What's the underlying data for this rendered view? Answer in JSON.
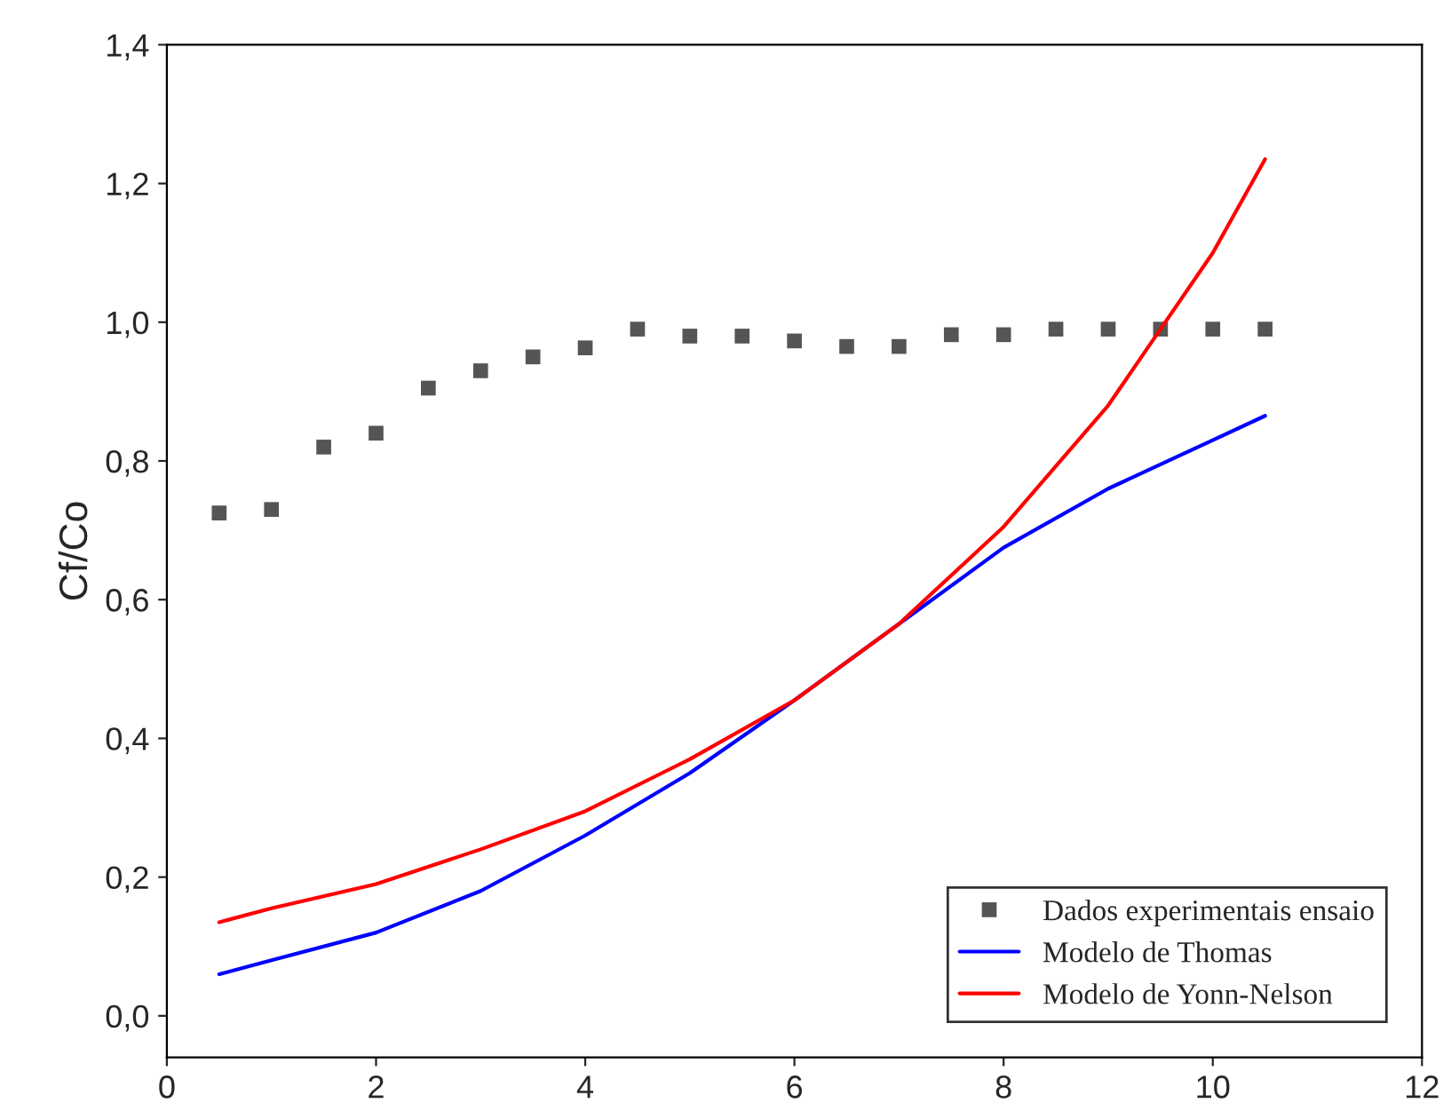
{
  "chart_data": {
    "type": "line",
    "ylabel": "Cf/Co",
    "xlim": [
      0,
      12
    ],
    "xticks": [
      0,
      2,
      4,
      6,
      8,
      10,
      12
    ],
    "ylim": [
      -0.06,
      1.4
    ],
    "yticks": [
      {
        "value": 0.0,
        "label": "0,0"
      },
      {
        "value": 0.2,
        "label": "0,2"
      },
      {
        "value": 0.4,
        "label": "0,4"
      },
      {
        "value": 0.6,
        "label": "0,6"
      },
      {
        "value": 0.8,
        "label": "0,8"
      },
      {
        "value": 1.0,
        "label": "1,0"
      },
      {
        "value": 1.2,
        "label": "1,2"
      },
      {
        "value": 1.4,
        "label": "1,4"
      }
    ],
    "grid": false,
    "legend": "bottom right",
    "series": [
      {
        "name": "Dados experimentais ensaio",
        "type": "scatter",
        "marker": "square",
        "color": "#555555",
        "x": [
          0.5,
          1,
          1.5,
          2,
          2.5,
          3,
          3.5,
          4,
          4.5,
          5,
          5.5,
          6,
          6.5,
          7,
          7.5,
          8,
          8.5,
          9,
          9.5,
          10,
          10.5
        ],
        "values": [
          0.725,
          0.73,
          0.82,
          0.84,
          0.905,
          0.93,
          0.95,
          0.963,
          0.99,
          0.98,
          0.98,
          0.973,
          0.965,
          0.965,
          0.982,
          0.982,
          0.99,
          0.99,
          0.99,
          0.99,
          0.99
        ]
      },
      {
        "name": "Modelo de Thomas",
        "line_style": "solid",
        "color": "#0000ff",
        "x": [
          0.5,
          1,
          2,
          3,
          4,
          5,
          6,
          7,
          8,
          9,
          10,
          10.5
        ],
        "values": [
          0.06,
          0.08,
          0.12,
          0.18,
          0.26,
          0.35,
          0.455,
          0.565,
          0.675,
          0.76,
          0.83,
          0.865
        ]
      },
      {
        "name": "Modelo de Yonn-Nelson",
        "line_style": "solid",
        "color": "#ff0000",
        "x": [
          0.5,
          1,
          2,
          3,
          4,
          5,
          6,
          7,
          8,
          9,
          9.5,
          10,
          10.5
        ],
        "values": [
          0.135,
          0.155,
          0.19,
          0.24,
          0.295,
          0.37,
          0.455,
          0.565,
          0.705,
          0.88,
          0.99,
          1.1,
          1.235
        ]
      }
    ]
  }
}
